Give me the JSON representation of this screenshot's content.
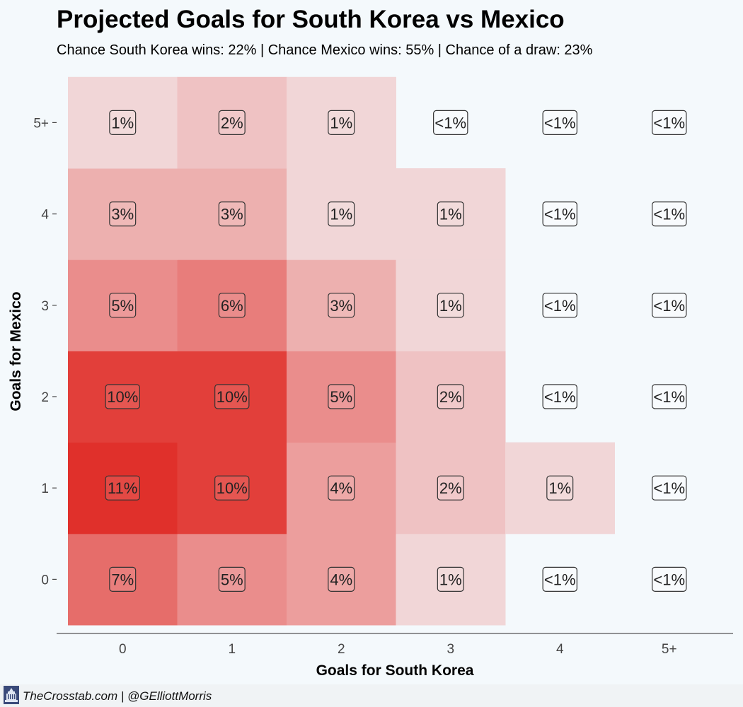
{
  "title": "Projected Goals for South Korea vs Mexico",
  "subtitle": "Chance South Korea wins: 22% | Chance Mexico wins: 55% | Chance of a draw: 23%",
  "footer": {
    "credit": "TheCrosstab.com | @GElliottMorris"
  },
  "colors": {
    "background": "#f4f9fc",
    "low": "#f4eff1",
    "high": "#e0302b"
  },
  "chart_data": {
    "type": "heatmap",
    "xlabel": "Goals for South Korea",
    "ylabel": "Goals for Mexico",
    "x_categories": [
      "0",
      "1",
      "2",
      "3",
      "4",
      "5+"
    ],
    "y_categories": [
      "0",
      "1",
      "2",
      "3",
      "4",
      "5+"
    ],
    "cells": [
      {
        "x": "0",
        "y": "0",
        "value": 7,
        "label": "7%"
      },
      {
        "x": "1",
        "y": "0",
        "value": 5,
        "label": "5%"
      },
      {
        "x": "2",
        "y": "0",
        "value": 4,
        "label": "4%"
      },
      {
        "x": "3",
        "y": "0",
        "value": 1,
        "label": "1%"
      },
      {
        "x": "4",
        "y": "0",
        "value": 0,
        "label": "<1%"
      },
      {
        "x": "5+",
        "y": "0",
        "value": 0,
        "label": "<1%"
      },
      {
        "x": "0",
        "y": "1",
        "value": 11,
        "label": "11%"
      },
      {
        "x": "1",
        "y": "1",
        "value": 10,
        "label": "10%"
      },
      {
        "x": "2",
        "y": "1",
        "value": 4,
        "label": "4%"
      },
      {
        "x": "3",
        "y": "1",
        "value": 2,
        "label": "2%"
      },
      {
        "x": "4",
        "y": "1",
        "value": 1,
        "label": "1%"
      },
      {
        "x": "5+",
        "y": "1",
        "value": 0,
        "label": "<1%"
      },
      {
        "x": "0",
        "y": "2",
        "value": 10,
        "label": "10%"
      },
      {
        "x": "1",
        "y": "2",
        "value": 10,
        "label": "10%"
      },
      {
        "x": "2",
        "y": "2",
        "value": 5,
        "label": "5%"
      },
      {
        "x": "3",
        "y": "2",
        "value": 2,
        "label": "2%"
      },
      {
        "x": "4",
        "y": "2",
        "value": 0,
        "label": "<1%"
      },
      {
        "x": "5+",
        "y": "2",
        "value": 0,
        "label": "<1%"
      },
      {
        "x": "0",
        "y": "3",
        "value": 5,
        "label": "5%"
      },
      {
        "x": "1",
        "y": "3",
        "value": 6,
        "label": "6%"
      },
      {
        "x": "2",
        "y": "3",
        "value": 3,
        "label": "3%"
      },
      {
        "x": "3",
        "y": "3",
        "value": 1,
        "label": "1%"
      },
      {
        "x": "4",
        "y": "3",
        "value": 0,
        "label": "<1%"
      },
      {
        "x": "5+",
        "y": "3",
        "value": 0,
        "label": "<1%"
      },
      {
        "x": "0",
        "y": "4",
        "value": 3,
        "label": "3%"
      },
      {
        "x": "1",
        "y": "4",
        "value": 3,
        "label": "3%"
      },
      {
        "x": "2",
        "y": "4",
        "value": 1,
        "label": "1%"
      },
      {
        "x": "3",
        "y": "4",
        "value": 1,
        "label": "1%"
      },
      {
        "x": "4",
        "y": "4",
        "value": 0,
        "label": "<1%"
      },
      {
        "x": "5+",
        "y": "4",
        "value": 0,
        "label": "<1%"
      },
      {
        "x": "0",
        "y": "5+",
        "value": 1,
        "label": "1%"
      },
      {
        "x": "1",
        "y": "5+",
        "value": 2,
        "label": "2%"
      },
      {
        "x": "2",
        "y": "5+",
        "value": 1,
        "label": "1%"
      },
      {
        "x": "3",
        "y": "5+",
        "value": 0,
        "label": "<1%"
      },
      {
        "x": "4",
        "y": "5+",
        "value": 0,
        "label": "<1%"
      },
      {
        "x": "5+",
        "y": "5+",
        "value": 0,
        "label": "<1%"
      }
    ]
  }
}
